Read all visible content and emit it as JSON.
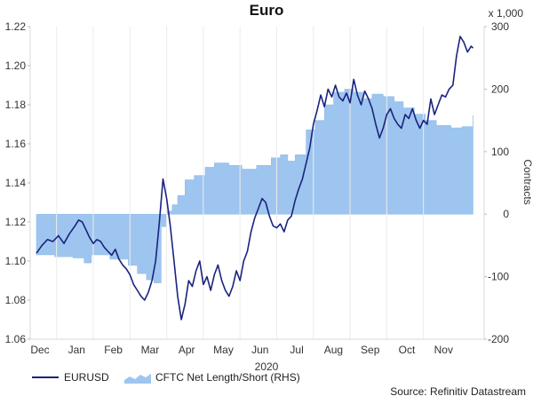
{
  "chart_data": {
    "type": "line+area",
    "title": "Euro",
    "year_label": "2020",
    "right_axis_unit": "x 1,000",
    "right_axis_label": "Contracts",
    "source": "Source: Refinitiv Datastream",
    "months": [
      "Dec",
      "Jan",
      "Feb",
      "Mar",
      "Apr",
      "May",
      "Jun",
      "Jul",
      "Aug",
      "Sep",
      "Oct",
      "Nov"
    ],
    "left_axis": {
      "min": 1.06,
      "max": 1.22,
      "ticks": [
        "1.06",
        "1.08",
        "1.10",
        "1.12",
        "1.14",
        "1.16",
        "1.18",
        "1.20",
        "1.22"
      ]
    },
    "right_axis": {
      "min": -200,
      "max": 300,
      "ticks": [
        "-200",
        "-100",
        "0",
        "100",
        "200",
        "300"
      ]
    },
    "colors": {
      "line": "#1a237e",
      "area": "#9ec5ef",
      "area_edge": "#8bb8e8"
    },
    "series": [
      {
        "name": "EURUSD",
        "axis": "left",
        "points": [
          [
            0.0,
            1.104
          ],
          [
            0.15,
            1.108
          ],
          [
            0.3,
            1.111
          ],
          [
            0.45,
            1.11
          ],
          [
            0.6,
            1.113
          ],
          [
            0.75,
            1.109
          ],
          [
            0.9,
            1.114
          ],
          [
            1.05,
            1.118
          ],
          [
            1.15,
            1.121
          ],
          [
            1.25,
            1.12
          ],
          [
            1.35,
            1.116
          ],
          [
            1.45,
            1.112
          ],
          [
            1.55,
            1.109
          ],
          [
            1.65,
            1.111
          ],
          [
            1.75,
            1.11
          ],
          [
            1.85,
            1.107
          ],
          [
            1.95,
            1.105
          ],
          [
            2.05,
            1.103
          ],
          [
            2.15,
            1.106
          ],
          [
            2.25,
            1.101
          ],
          [
            2.35,
            1.098
          ],
          [
            2.45,
            1.096
          ],
          [
            2.55,
            1.093
          ],
          [
            2.65,
            1.088
          ],
          [
            2.75,
            1.085
          ],
          [
            2.85,
            1.082
          ],
          [
            2.95,
            1.08
          ],
          [
            3.05,
            1.084
          ],
          [
            3.15,
            1.09
          ],
          [
            3.25,
            1.1
          ],
          [
            3.35,
            1.12
          ],
          [
            3.45,
            1.142
          ],
          [
            3.55,
            1.132
          ],
          [
            3.65,
            1.118
          ],
          [
            3.75,
            1.1
          ],
          [
            3.85,
            1.082
          ],
          [
            3.95,
            1.07
          ],
          [
            4.05,
            1.078
          ],
          [
            4.15,
            1.09
          ],
          [
            4.25,
            1.087
          ],
          [
            4.35,
            1.095
          ],
          [
            4.45,
            1.1
          ],
          [
            4.55,
            1.088
          ],
          [
            4.65,
            1.092
          ],
          [
            4.75,
            1.085
          ],
          [
            4.85,
            1.093
          ],
          [
            4.95,
            1.098
          ],
          [
            5.05,
            1.09
          ],
          [
            5.15,
            1.085
          ],
          [
            5.25,
            1.082
          ],
          [
            5.35,
            1.087
          ],
          [
            5.45,
            1.095
          ],
          [
            5.55,
            1.09
          ],
          [
            5.65,
            1.1
          ],
          [
            5.75,
            1.105
          ],
          [
            5.85,
            1.115
          ],
          [
            5.95,
            1.122
          ],
          [
            6.05,
            1.127
          ],
          [
            6.15,
            1.132
          ],
          [
            6.25,
            1.13
          ],
          [
            6.35,
            1.123
          ],
          [
            6.45,
            1.118
          ],
          [
            6.55,
            1.117
          ],
          [
            6.65,
            1.119
          ],
          [
            6.75,
            1.115
          ],
          [
            6.85,
            1.121
          ],
          [
            6.95,
            1.123
          ],
          [
            7.05,
            1.131
          ],
          [
            7.15,
            1.137
          ],
          [
            7.25,
            1.142
          ],
          [
            7.35,
            1.15
          ],
          [
            7.45,
            1.158
          ],
          [
            7.55,
            1.17
          ],
          [
            7.65,
            1.177
          ],
          [
            7.75,
            1.185
          ],
          [
            7.85,
            1.179
          ],
          [
            7.95,
            1.188
          ],
          [
            8.05,
            1.184
          ],
          [
            8.15,
            1.19
          ],
          [
            8.25,
            1.184
          ],
          [
            8.35,
            1.182
          ],
          [
            8.45,
            1.186
          ],
          [
            8.55,
            1.181
          ],
          [
            8.65,
            1.193
          ],
          [
            8.75,
            1.185
          ],
          [
            8.85,
            1.18
          ],
          [
            8.95,
            1.187
          ],
          [
            9.05,
            1.183
          ],
          [
            9.15,
            1.178
          ],
          [
            9.25,
            1.17
          ],
          [
            9.35,
            1.163
          ],
          [
            9.45,
            1.168
          ],
          [
            9.55,
            1.175
          ],
          [
            9.65,
            1.178
          ],
          [
            9.75,
            1.173
          ],
          [
            9.85,
            1.17
          ],
          [
            9.95,
            1.168
          ],
          [
            10.05,
            1.175
          ],
          [
            10.15,
            1.173
          ],
          [
            10.25,
            1.178
          ],
          [
            10.35,
            1.172
          ],
          [
            10.45,
            1.168
          ],
          [
            10.55,
            1.172
          ],
          [
            10.65,
            1.17
          ],
          [
            10.75,
            1.183
          ],
          [
            10.85,
            1.175
          ],
          [
            10.95,
            1.18
          ],
          [
            11.05,
            1.185
          ],
          [
            11.15,
            1.184
          ],
          [
            11.25,
            1.188
          ],
          [
            11.35,
            1.19
          ],
          [
            11.45,
            1.205
          ],
          [
            11.55,
            1.215
          ],
          [
            11.65,
            1.212
          ],
          [
            11.75,
            1.207
          ],
          [
            11.85,
            1.21
          ],
          [
            11.9,
            1.209
          ]
        ]
      },
      {
        "name": "CFTC Net Length/Short (RHS)",
        "axis": "right",
        "points": [
          [
            0.0,
            -65
          ],
          [
            0.5,
            -68
          ],
          [
            1.0,
            -70
          ],
          [
            1.3,
            -78
          ],
          [
            1.5,
            -65
          ],
          [
            2.0,
            -72
          ],
          [
            2.5,
            -82
          ],
          [
            2.75,
            -95
          ],
          [
            3.0,
            -105
          ],
          [
            3.2,
            -110
          ],
          [
            3.4,
            -20
          ],
          [
            3.55,
            5
          ],
          [
            3.7,
            15
          ],
          [
            3.85,
            30
          ],
          [
            4.05,
            55
          ],
          [
            4.3,
            62
          ],
          [
            4.6,
            75
          ],
          [
            4.85,
            82
          ],
          [
            5.25,
            78
          ],
          [
            5.6,
            72
          ],
          [
            6.0,
            78
          ],
          [
            6.4,
            90
          ],
          [
            6.65,
            95
          ],
          [
            6.85,
            85
          ],
          [
            7.05,
            95
          ],
          [
            7.35,
            135
          ],
          [
            7.6,
            150
          ],
          [
            7.85,
            175
          ],
          [
            8.1,
            195
          ],
          [
            8.4,
            200
          ],
          [
            8.65,
            195
          ],
          [
            8.9,
            185
          ],
          [
            9.15,
            192
          ],
          [
            9.45,
            188
          ],
          [
            9.75,
            180
          ],
          [
            10.0,
            170
          ],
          [
            10.3,
            160
          ],
          [
            10.6,
            150
          ],
          [
            10.9,
            142
          ],
          [
            11.3,
            138
          ],
          [
            11.6,
            140
          ],
          [
            11.9,
            158
          ]
        ]
      }
    ]
  },
  "legend": {
    "line_label": "EURUSD",
    "area_label": "CFTC Net Length/Short (RHS)"
  }
}
